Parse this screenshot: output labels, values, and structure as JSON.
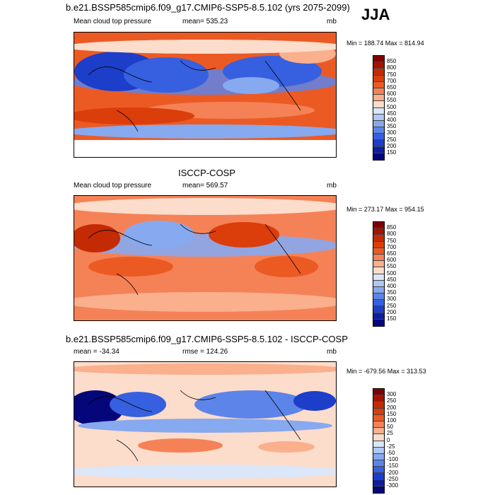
{
  "season": "JJA",
  "chart_data": [
    {
      "type": "heatmap",
      "title": "b.e21.BSSP585cmip6.f09_g17.CMIP6-SSP5-8.5.102 (yrs 2075-2099)",
      "left_label": "Mean cloud top pressure",
      "center_label": "mean= 535.23",
      "units": "mb",
      "minmax": "Min = 188.74 Max = 814.94",
      "min": 188.74,
      "max": 814.94,
      "mean": 535.23,
      "levels": [
        850,
        800,
        750,
        700,
        650,
        600,
        550,
        500,
        450,
        400,
        350,
        300,
        250,
        200,
        150
      ],
      "level_labels": [
        "850",
        "800",
        "750",
        "700",
        "650",
        "600",
        "550",
        "500",
        "450",
        "400",
        "350",
        "300",
        "250",
        "200",
        "150"
      ],
      "colors": [
        "#7f0000",
        "#a51200",
        "#c42a03",
        "#db3d0b",
        "#ec5a24",
        "#f58256",
        "#faaf8d",
        "#fcdccb",
        "#dbe7f8",
        "#b1c8f4",
        "#87a9ef",
        "#5d84e9",
        "#3660df",
        "#1c3ec9",
        "#0e1ea1",
        "#04067a"
      ]
    },
    {
      "type": "heatmap",
      "title": "ISCCP-COSP",
      "left_label": "Mean cloud top pressure",
      "center_label": "mean= 569.57",
      "units": "mb",
      "minmax": "Min = 273.17 Max = 954.15",
      "min": 273.17,
      "max": 954.15,
      "mean": 569.57,
      "levels": [
        850,
        800,
        750,
        700,
        650,
        600,
        550,
        500,
        450,
        400,
        350,
        300,
        250,
        200,
        150
      ],
      "level_labels": [
        "850",
        "800",
        "750",
        "700",
        "650",
        "600",
        "550",
        "500",
        "450",
        "400",
        "350",
        "300",
        "250",
        "200",
        "150"
      ],
      "colors": [
        "#7f0000",
        "#a51200",
        "#c42a03",
        "#db3d0b",
        "#ec5a24",
        "#f58256",
        "#faaf8d",
        "#fcdccb",
        "#dbe7f8",
        "#b1c8f4",
        "#87a9ef",
        "#5d84e9",
        "#3660df",
        "#1c3ec9",
        "#0e1ea1",
        "#04067a"
      ]
    },
    {
      "type": "heatmap",
      "title": "b.e21.BSSP585cmip6.f09_g17.CMIP6-SSP5-8.5.102 - ISCCP-COSP",
      "left_label": "mean = -34.34",
      "center_label": "rmse = 124.26",
      "units": "mb",
      "minmax": "Min = -679.56 Max = 313.53",
      "min": -679.56,
      "max": 313.53,
      "mean": -34.34,
      "rmse": 124.26,
      "levels": [
        300,
        250,
        200,
        150,
        100,
        50,
        25,
        0,
        -25,
        -50,
        -100,
        -150,
        -200,
        -250,
        -300
      ],
      "level_labels": [
        "300",
        "250",
        "200",
        "150",
        "100",
        "50",
        "25",
        "0",
        "-25",
        "-50",
        "-100",
        "-150",
        "-200",
        "-250",
        "-300"
      ],
      "colors": [
        "#7f0000",
        "#a51200",
        "#c42a03",
        "#db3d0b",
        "#ec5a24",
        "#f58256",
        "#faaf8d",
        "#fcdccb",
        "#dbe7f8",
        "#b1c8f4",
        "#87a9ef",
        "#5d84e9",
        "#3660df",
        "#1c3ec9",
        "#0e1ea1",
        "#04067a"
      ]
    }
  ]
}
